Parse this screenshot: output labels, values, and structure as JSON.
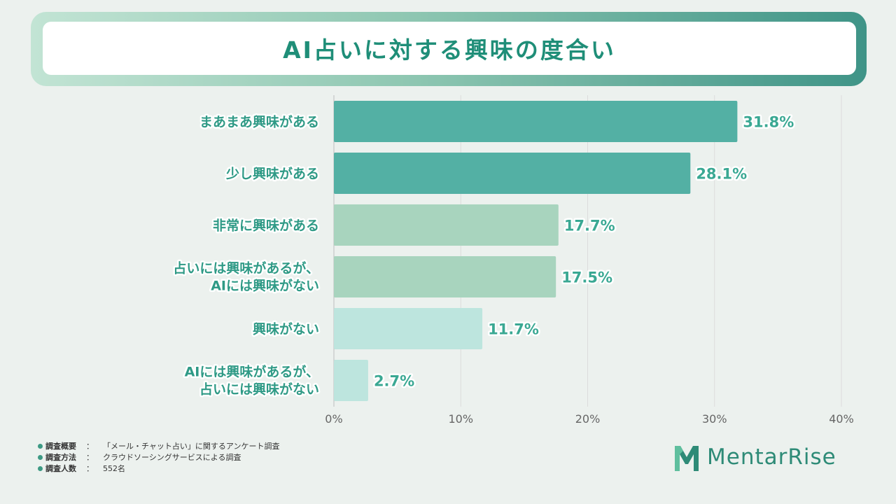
{
  "title": "AI占いに対する興味の度合い",
  "colors": {
    "dark": "#53b0a4",
    "mid": "#a8d4be",
    "light": "#bde5de",
    "text_accent": "#1f8e78"
  },
  "chart_data": {
    "type": "bar",
    "orientation": "horizontal",
    "categories": [
      [
        "まあまあ興味がある"
      ],
      [
        "少し興味がある"
      ],
      [
        "非常に興味がある"
      ],
      [
        "占いには興味があるが、",
        "AIには興味がない"
      ],
      [
        "興味がない"
      ],
      [
        "AIには興味があるが、",
        "占いには興味がない"
      ]
    ],
    "values": [
      31.8,
      28.1,
      17.7,
      17.5,
      11.7,
      2.7
    ],
    "value_labels": [
      "31.8%",
      "28.1%",
      "17.7%",
      "17.5%",
      "11.7%",
      "2.7%"
    ],
    "bar_colors": [
      "#53b0a4",
      "#53b0a4",
      "#a8d4be",
      "#a8d4be",
      "#bde5de",
      "#bde5de"
    ],
    "xlim": [
      0,
      40
    ],
    "x_ticks": [
      "0%",
      "10%",
      "20%",
      "30%",
      "40%"
    ],
    "grid": true
  },
  "notes": [
    {
      "key": "調査概要",
      "sep": "：",
      "value": "「メール・チャット占い」に関するアンケート調査"
    },
    {
      "key": "調査方法",
      "sep": "：",
      "value": "クラウドソーシングサービスによる調査"
    },
    {
      "key": "調査人数",
      "sep": "：",
      "value": "552名"
    }
  ],
  "logo": {
    "text": "MentarRise",
    "icon": "mentarrise-logo-icon"
  }
}
